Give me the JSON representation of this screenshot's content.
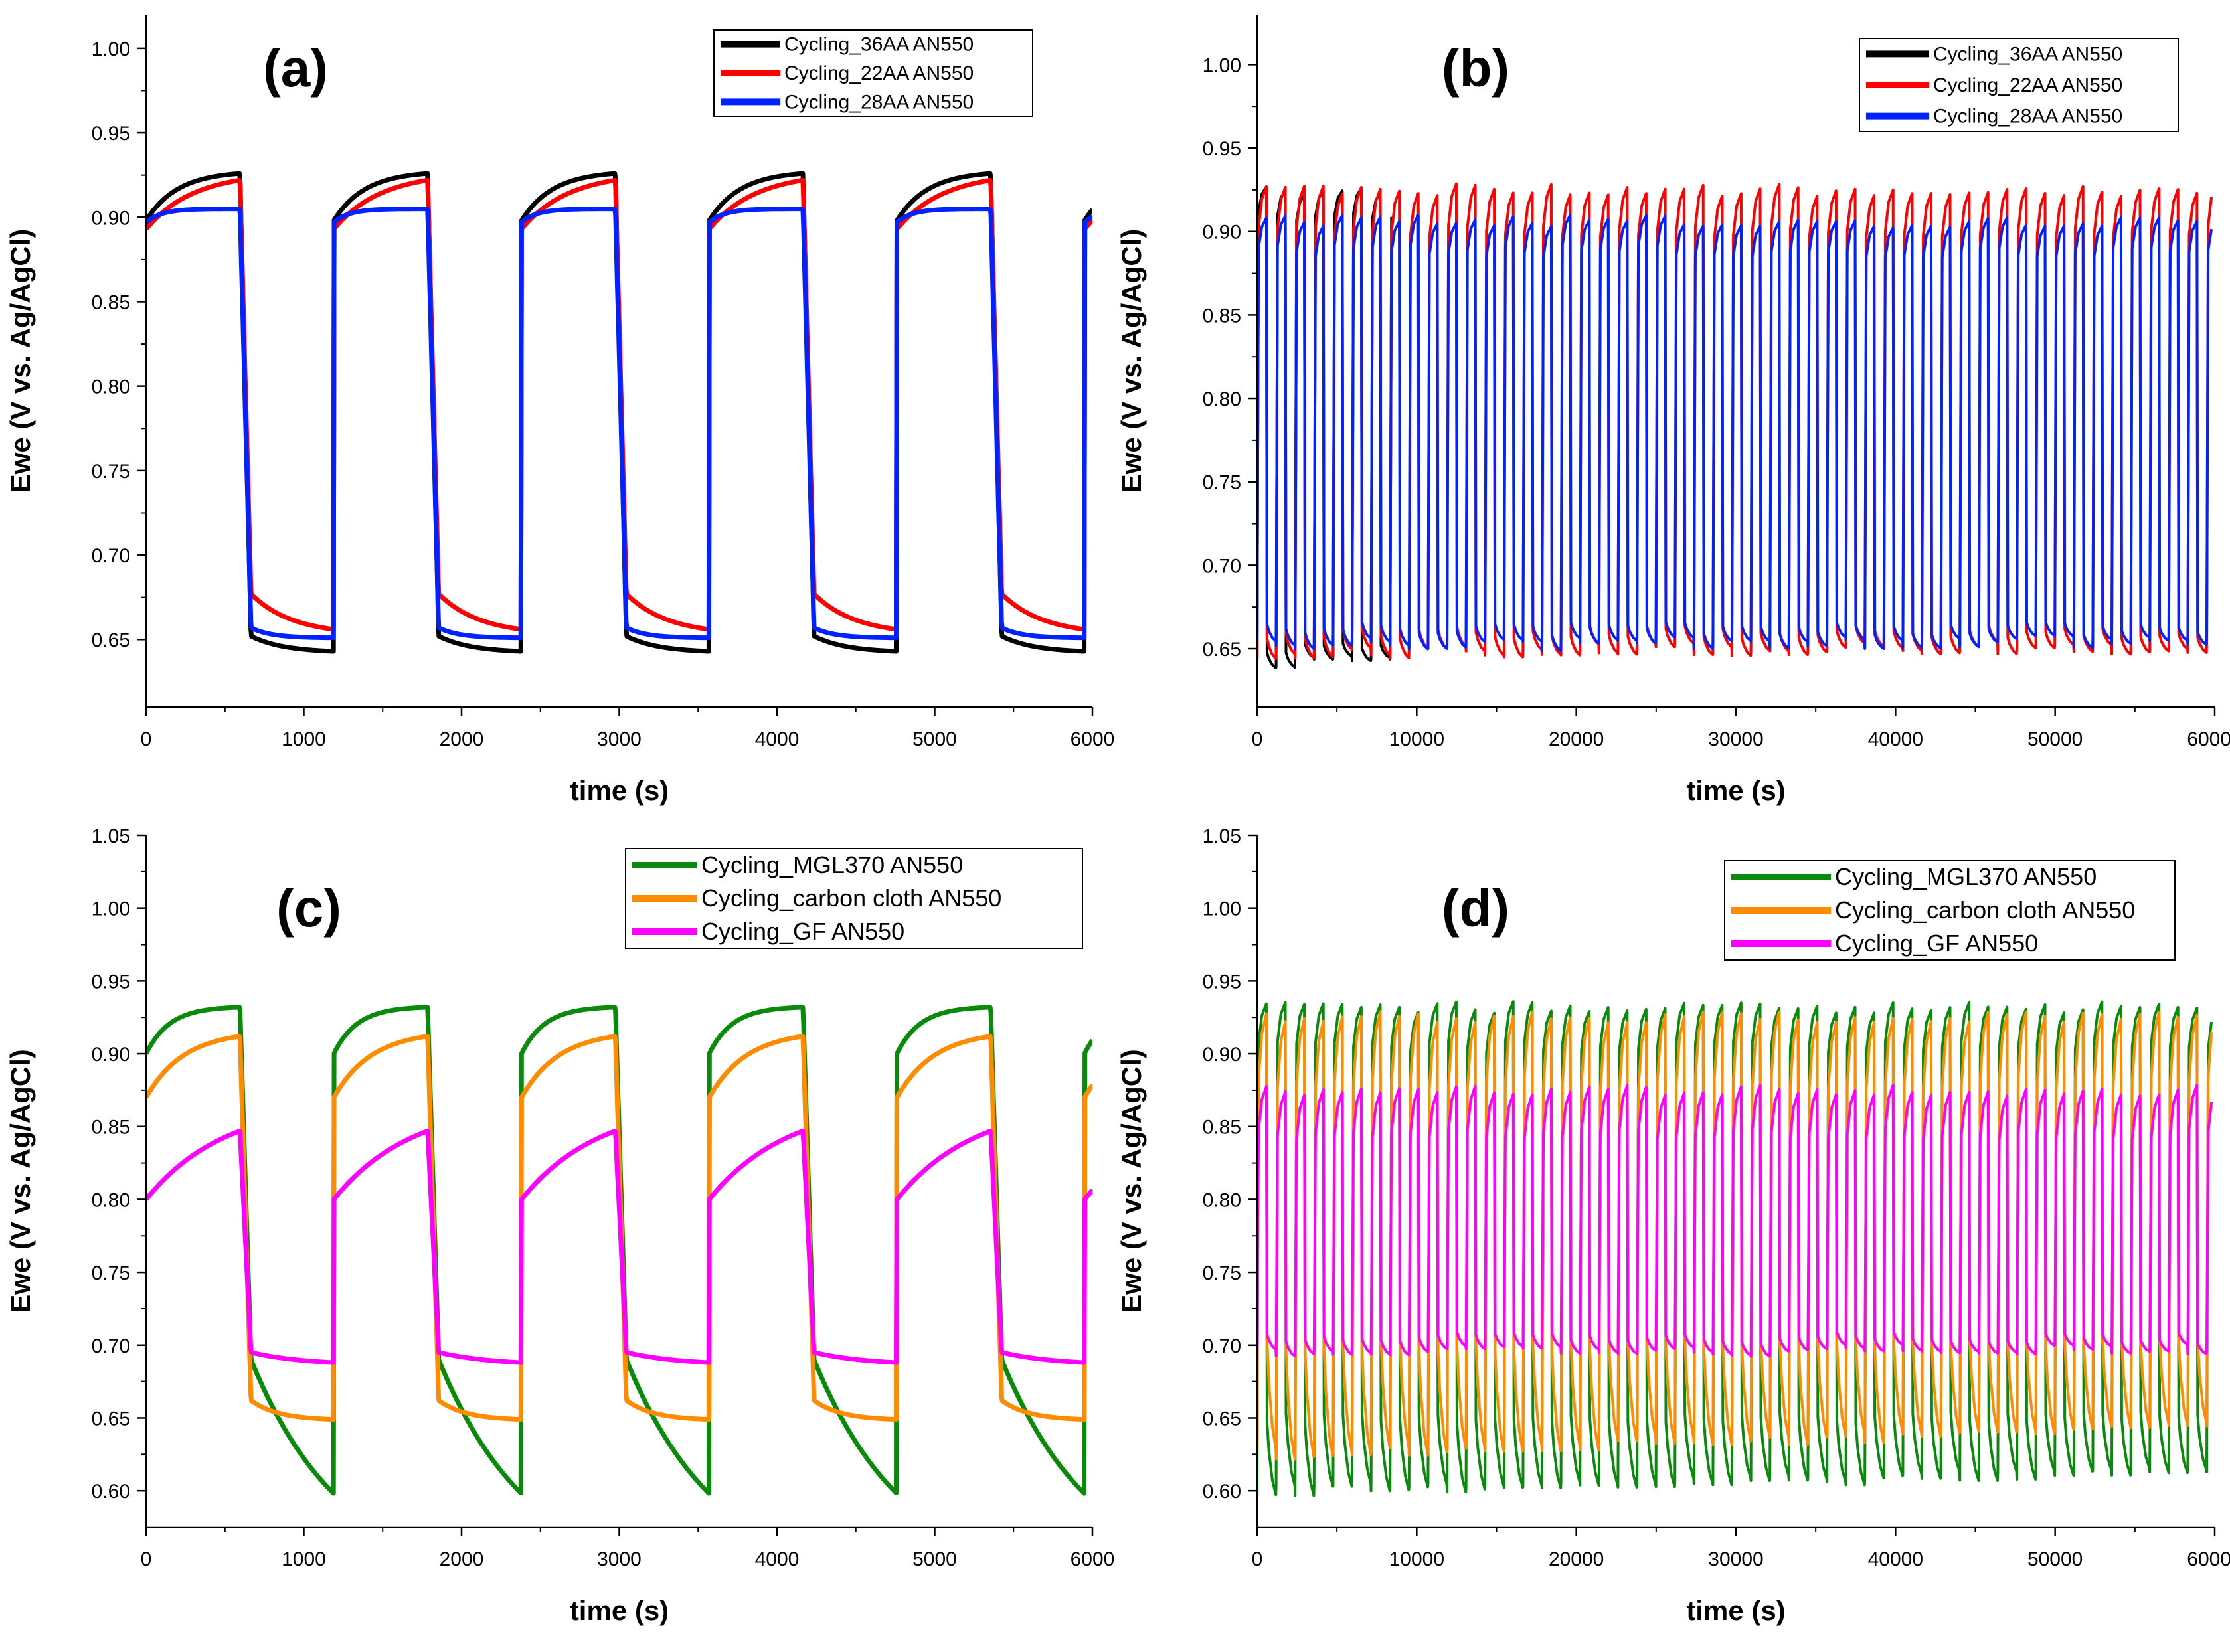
{
  "chart_data": [
    {
      "type": "line",
      "panel_label": "(a)",
      "xlabel": "time (s)",
      "ylabel": "Ewe (V vs. Ag/AgCl)",
      "xlim": [
        0,
        6000
      ],
      "ylim": [
        0.61,
        1.02
      ],
      "xticks": [
        "0",
        "1000",
        "2000",
        "3000",
        "4000",
        "5000",
        "6000"
      ],
      "xtick_values": [
        0,
        1000,
        2000,
        3000,
        4000,
        5000,
        6000
      ],
      "yticks": [
        "0.65",
        "0.70",
        "0.75",
        "0.80",
        "0.85",
        "0.90",
        "0.95",
        "1.00"
      ],
      "ytick_values": [
        0.65,
        0.7,
        0.75,
        0.8,
        0.85,
        0.9,
        0.95,
        1.0
      ],
      "legend": "top-right",
      "period_s": 1190,
      "charge_fraction": 0.5,
      "series": [
        {
          "name": "Cycling_36AA AN550",
          "color": "#000000",
          "high": [
            0.898,
            0.926
          ],
          "low": [
            0.652,
            0.643
          ],
          "jump_low": 0.0,
          "jump_high": 0.0,
          "k_high": 3.0,
          "k_low": 2.5
        },
        {
          "name": "Cycling_22AA AN550",
          "color": "#ff0000",
          "high": [
            0.893,
            0.922
          ],
          "low": [
            0.665,
            0.656
          ],
          "jump_low": 0.012,
          "jump_high": 0.0,
          "k_high": 2.0,
          "k_low": 2.0
        },
        {
          "name": "Cycling_28AA AN550",
          "color": "#0022ff",
          "high": [
            0.897,
            0.905
          ],
          "low": [
            0.657,
            0.651
          ],
          "jump_low": 0.0,
          "jump_high": 0.0,
          "k_high": 6.0,
          "k_low": 4.0
        }
      ]
    },
    {
      "type": "line",
      "panel_label": "(b)",
      "xlabel": "time (s)",
      "ylabel": "Ewe (V vs. Ag/AgCl)",
      "xlim": [
        0,
        60000
      ],
      "ylim": [
        0.615,
        1.03
      ],
      "xticks": [
        "0",
        "10000",
        "20000",
        "30000",
        "40000",
        "50000",
        "60000"
      ],
      "xtick_values": [
        0,
        10000,
        20000,
        30000,
        40000,
        50000,
        60000
      ],
      "yticks": [
        "0.65",
        "0.70",
        "0.75",
        "0.80",
        "0.85",
        "0.90",
        "0.95",
        "1.00"
      ],
      "ytick_values": [
        0.65,
        0.7,
        0.75,
        0.8,
        0.85,
        0.9,
        0.95,
        1.0
      ],
      "legend": "top-right",
      "period_s": 1190,
      "charge_fraction": 0.5,
      "series": [
        {
          "name": "Cycling_36AA AN550",
          "color": "#000000",
          "high": [
            0.91,
            0.925
          ],
          "low": [
            0.65,
            0.641
          ],
          "end_s": 8500
        },
        {
          "name": "Cycling_22AA AN550",
          "color": "#ff0000",
          "high": [
            0.9,
            0.925
          ],
          "low": [
            0.66,
            0.648
          ],
          "end_s": 60000
        },
        {
          "name": "Cycling_28AA AN550",
          "color": "#0022ff",
          "high": [
            0.888,
            0.906
          ],
          "low": [
            0.662,
            0.652
          ],
          "end_s": 60000
        }
      ]
    },
    {
      "type": "line",
      "panel_label": "(c)",
      "xlabel": "time (s)",
      "ylabel": "Ewe (V vs. Ag/AgCl)",
      "xlim": [
        0,
        6000
      ],
      "ylim": [
        0.575,
        1.05
      ],
      "xticks": [
        "0",
        "1000",
        "2000",
        "3000",
        "4000",
        "5000",
        "6000"
      ],
      "xtick_values": [
        0,
        1000,
        2000,
        3000,
        4000,
        5000,
        6000
      ],
      "yticks": [
        "0.60",
        "0.65",
        "0.70",
        "0.75",
        "0.80",
        "0.85",
        "0.90",
        "0.95",
        "1.00",
        "1.05"
      ],
      "ytick_values": [
        0.6,
        0.65,
        0.7,
        0.75,
        0.8,
        0.85,
        0.9,
        0.95,
        1.0,
        1.05
      ],
      "legend": "top-right",
      "period_s": 1190,
      "charge_fraction": 0.5,
      "series": [
        {
          "name": "Cycling_MGL370 AN550",
          "color": "#0a8a0a",
          "high": [
            0.9,
            0.932
          ],
          "low": [
            0.69,
            0.598
          ],
          "jump_low": 0.0,
          "jump_high": 0.0,
          "k_high": 4.0,
          "k_low": 0.9
        },
        {
          "name": "Cycling_carbon cloth AN550",
          "color": "#ff8c00",
          "high": [
            0.87,
            0.912
          ],
          "low": [
            0.662,
            0.649
          ],
          "jump_low": 0.0,
          "jump_high": 0.0,
          "k_high": 2.5,
          "k_low": 3.0
        },
        {
          "name": "Cycling_GF AN550",
          "color": "#ff00ff",
          "high": [
            0.8,
            0.847
          ],
          "low": [
            0.695,
            0.688
          ],
          "jump_low": 0.0,
          "jump_high": 0.0,
          "k_high": 1.2,
          "k_low": 1.5
        }
      ]
    },
    {
      "type": "line",
      "panel_label": "(d)",
      "xlabel": "time (s)",
      "ylabel": "Ewe (V vs. Ag/AgCl)",
      "xlim": [
        0,
        60000
      ],
      "ylim": [
        0.575,
        1.05
      ],
      "xticks": [
        "0",
        "10000",
        "20000",
        "30000",
        "40000",
        "50000",
        "60000"
      ],
      "xtick_values": [
        0,
        10000,
        20000,
        30000,
        40000,
        50000,
        60000
      ],
      "yticks": [
        "0.60",
        "0.65",
        "0.70",
        "0.75",
        "0.80",
        "0.85",
        "0.90",
        "0.95",
        "1.00",
        "1.05"
      ],
      "ytick_values": [
        0.6,
        0.65,
        0.7,
        0.75,
        0.8,
        0.85,
        0.9,
        0.95,
        1.0,
        1.05
      ],
      "legend": "top-right",
      "period_s": 1190,
      "charge_fraction": 0.5,
      "series": [
        {
          "name": "Cycling_MGL370 AN550",
          "color": "#0a8a0a",
          "high": [
            0.905,
            0.932
          ],
          "low": [
            0.65,
            0.6
          ],
          "end_s": 60000
        },
        {
          "name": "Cycling_carbon cloth AN550",
          "color": "#ff8c00",
          "high": [
            0.88,
            0.925
          ],
          "low": [
            0.7,
            0.625
          ],
          "end_s": 60000
        },
        {
          "name": "Cycling_GF AN550",
          "color": "#ff00ff",
          "high": [
            0.845,
            0.875
          ],
          "low": [
            0.705,
            0.695
          ],
          "end_s": 60000
        }
      ]
    }
  ]
}
